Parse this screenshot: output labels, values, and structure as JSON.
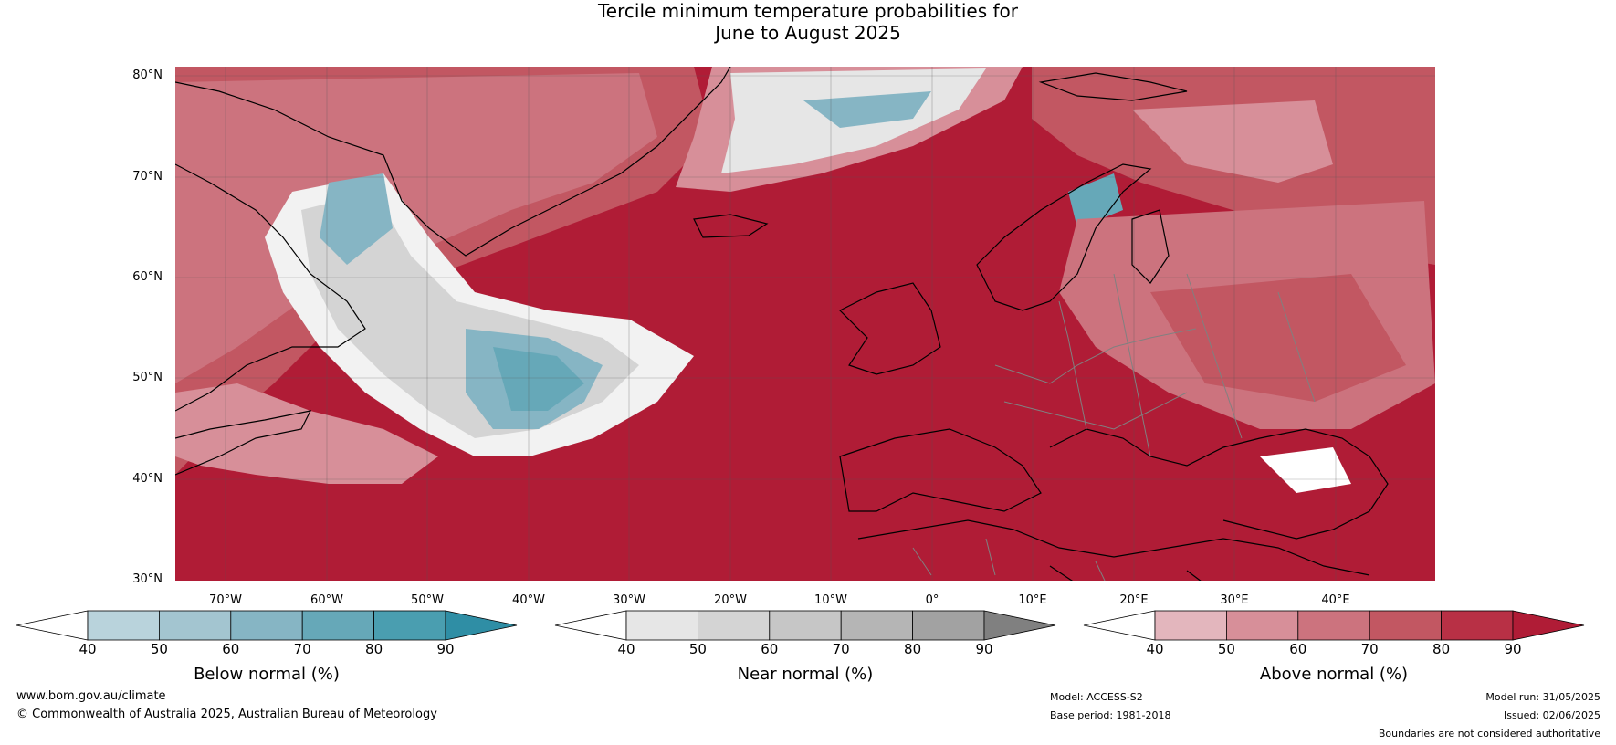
{
  "title": {
    "line1": "Tercile minimum temperature probabilities for",
    "line2": "June to August 2025"
  },
  "map": {
    "region": "North Atlantic and Europe",
    "lat_labels": [
      "80°N",
      "70°N",
      "60°N",
      "50°N",
      "40°N",
      "30°N"
    ],
    "lon_labels": [
      "70°W",
      "60°W",
      "50°W",
      "40°W",
      "30°W",
      "20°W",
      "10°W",
      "0°",
      "10°E",
      "20°E",
      "30°E",
      "40°E"
    ],
    "gridlines": true
  },
  "colorbars": [
    {
      "title": "Below normal (%)",
      "ticks": [
        "40",
        "50",
        "60",
        "70",
        "80",
        "90"
      ],
      "colors": [
        "#ffffff",
        "#b9d3dc",
        "#a3c5d0",
        "#86b5c4",
        "#66a8b8",
        "#4a9eb0",
        "#2f8ea5"
      ]
    },
    {
      "title": "Near normal (%)",
      "ticks": [
        "40",
        "50",
        "60",
        "70",
        "80",
        "90"
      ],
      "colors": [
        "#ffffff",
        "#e6e6e6",
        "#d4d4d4",
        "#c6c6c6",
        "#b5b5b5",
        "#a2a2a2",
        "#808080"
      ]
    },
    {
      "title": "Above normal (%)",
      "ticks": [
        "40",
        "50",
        "60",
        "70",
        "80",
        "90"
      ],
      "colors": [
        "#ffffff",
        "#e3b6bd",
        "#d78f99",
        "#cc737e",
        "#c25762",
        "#b83045",
        "#b01c36"
      ]
    }
  ],
  "footer": {
    "website": "www.bom.gov.au/climate",
    "copyright": "© Commonwealth of Australia 2025, Australian Bureau of Meteorology",
    "model": "Model: ACCESS-S2",
    "base_period": "Base period: 1981-2018",
    "model_run": "Model run: 31/05/2025",
    "issued": "Issued: 02/06/2025",
    "disclaimer": "Boundaries are not considered authoritative"
  }
}
